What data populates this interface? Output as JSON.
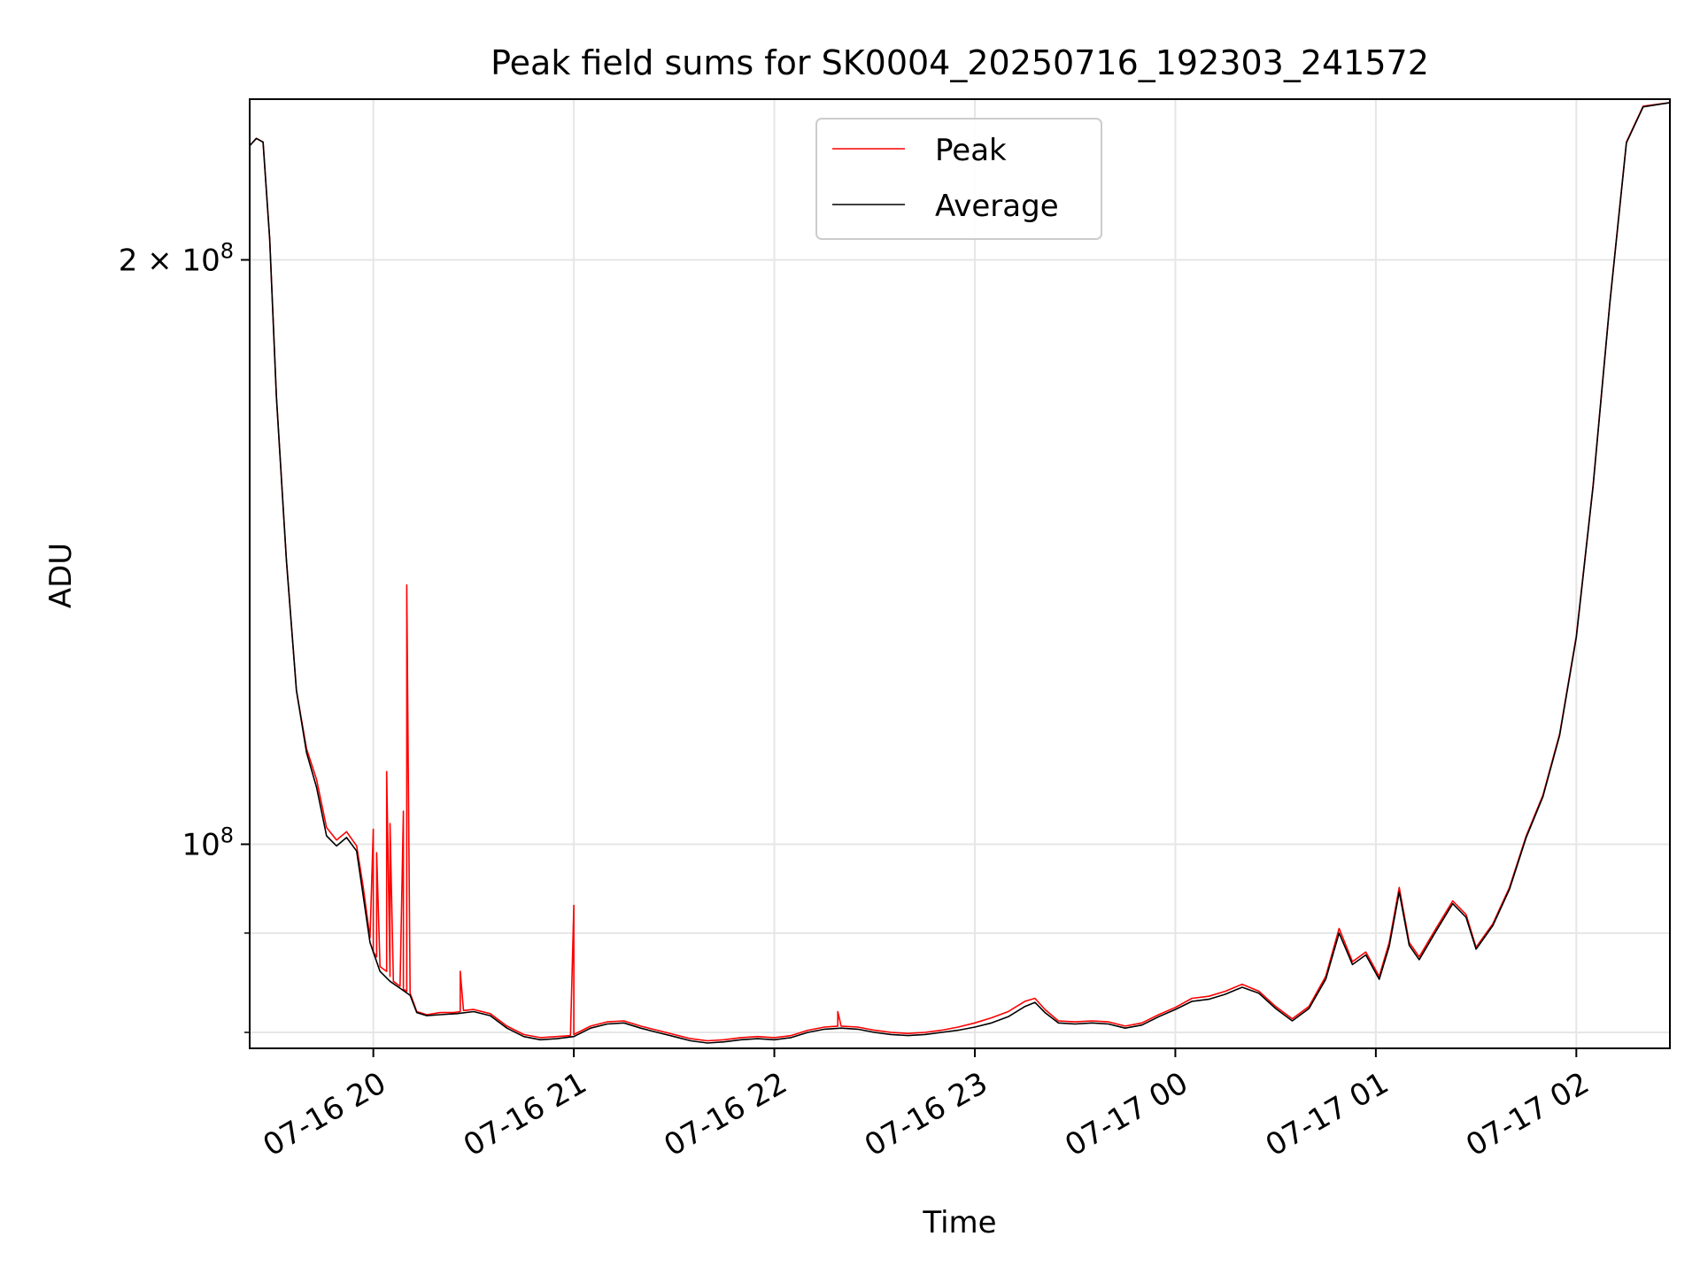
{
  "chart_data": {
    "type": "line",
    "title": "Peak field sums for SK0004_20250716_192303_241572",
    "xlabel": "Time",
    "ylabel": "ADU",
    "x_axis": "time",
    "y_scale": "log",
    "xlim": [
      "2025-07-16 19:23",
      "2025-07-17 02:28"
    ],
    "ylim": [
      78500000,
      242000000
    ],
    "xticks": [
      {
        "t": "2025-07-16 20:00",
        "label": "07-16 20"
      },
      {
        "t": "2025-07-16 21:00",
        "label": "07-16 21"
      },
      {
        "t": "2025-07-16 22:00",
        "label": "07-16 22"
      },
      {
        "t": "2025-07-16 23:00",
        "label": "07-16 23"
      },
      {
        "t": "2025-07-17 00:00",
        "label": "07-17 00"
      },
      {
        "t": "2025-07-17 01:00",
        "label": "07-17 01"
      },
      {
        "t": "2025-07-17 02:00",
        "label": "07-17 02"
      }
    ],
    "yticks_major": [
      {
        "value": 200000000,
        "base": "2 × 10",
        "exp": "8"
      },
      {
        "value": 100000000,
        "base": "10",
        "exp": "8"
      }
    ],
    "yticks_minor": [
      90000000,
      80000000
    ],
    "grid": true,
    "legend_position": "upper-center",
    "series": [
      {
        "name": "Peak",
        "color": "#ff0000",
        "points": [
          [
            "2025-07-16 19:23",
            229000000
          ],
          [
            "2025-07-16 19:25",
            231000000
          ],
          [
            "2025-07-16 19:27",
            230000000
          ],
          [
            "2025-07-16 19:29",
            205000000
          ],
          [
            "2025-07-16 19:31",
            170000000
          ],
          [
            "2025-07-16 19:34",
            140000000
          ],
          [
            "2025-07-16 19:37",
            120000000
          ],
          [
            "2025-07-16 19:40",
            112000000
          ],
          [
            "2025-07-16 19:43",
            108000000
          ],
          [
            "2025-07-16 19:46",
            102000000
          ],
          [
            "2025-07-16 19:49",
            100500000
          ],
          [
            "2025-07-16 19:52",
            101500000
          ],
          [
            "2025-07-16 19:55",
            99800000
          ],
          [
            "2025-07-16 19:57",
            95000000
          ],
          [
            "2025-07-16 19:59",
            89500000
          ],
          [
            "2025-07-16 20:00",
            101800000
          ],
          [
            "2025-07-16 20:00",
            88000000
          ],
          [
            "2025-07-16 20:01",
            87500000
          ],
          [
            "2025-07-16 20:01",
            99000000
          ],
          [
            "2025-07-16 20:02",
            86500000
          ],
          [
            "2025-07-16 20:04",
            86000000
          ],
          [
            "2025-07-16 20:04",
            109000000
          ],
          [
            "2025-07-16 20:05",
            85500000
          ],
          [
            "2025-07-16 20:05",
            102500000
          ],
          [
            "2025-07-16 20:06",
            85000000
          ],
          [
            "2025-07-16 20:08",
            84500000
          ],
          [
            "2025-07-16 20:09",
            104000000
          ],
          [
            "2025-07-16 20:09",
            84200000
          ],
          [
            "2025-07-16 20:10",
            84000000
          ],
          [
            "2025-07-16 20:10",
            136000000
          ],
          [
            "2025-07-16 20:11",
            83800000
          ],
          [
            "2025-07-16 20:13",
            82000000
          ],
          [
            "2025-07-16 20:16",
            81700000
          ],
          [
            "2025-07-16 20:20",
            81900000
          ],
          [
            "2025-07-16 20:24",
            81900000
          ],
          [
            "2025-07-16 20:26",
            82000000
          ],
          [
            "2025-07-16 20:26",
            86000000
          ],
          [
            "2025-07-16 20:27",
            82100000
          ],
          [
            "2025-07-16 20:30",
            82200000
          ],
          [
            "2025-07-16 20:35",
            81800000
          ],
          [
            "2025-07-16 20:40",
            80600000
          ],
          [
            "2025-07-16 20:45",
            79800000
          ],
          [
            "2025-07-16 20:50",
            79500000
          ],
          [
            "2025-07-16 20:55",
            79600000
          ],
          [
            "2025-07-16 20:59",
            79700000
          ],
          [
            "2025-07-16 21:00",
            93000000
          ],
          [
            "2025-07-16 21:00",
            79800000
          ],
          [
            "2025-07-16 21:05",
            80600000
          ],
          [
            "2025-07-16 21:10",
            81000000
          ],
          [
            "2025-07-16 21:15",
            81100000
          ],
          [
            "2025-07-16 21:20",
            80600000
          ],
          [
            "2025-07-16 21:25",
            80200000
          ],
          [
            "2025-07-16 21:30",
            79800000
          ],
          [
            "2025-07-16 21:35",
            79400000
          ],
          [
            "2025-07-16 21:40",
            79200000
          ],
          [
            "2025-07-16 21:45",
            79300000
          ],
          [
            "2025-07-16 21:50",
            79500000
          ],
          [
            "2025-07-16 21:55",
            79600000
          ],
          [
            "2025-07-16 22:00",
            79500000
          ],
          [
            "2025-07-16 22:05",
            79700000
          ],
          [
            "2025-07-16 22:10",
            80200000
          ],
          [
            "2025-07-16 22:15",
            80500000
          ],
          [
            "2025-07-16 22:19",
            80600000
          ],
          [
            "2025-07-16 22:19",
            82000000
          ],
          [
            "2025-07-16 22:20",
            80600000
          ],
          [
            "2025-07-16 22:25",
            80500000
          ],
          [
            "2025-07-16 22:30",
            80200000
          ],
          [
            "2025-07-16 22:35",
            80000000
          ],
          [
            "2025-07-16 22:40",
            79900000
          ],
          [
            "2025-07-16 22:45",
            80000000
          ],
          [
            "2025-07-16 22:50",
            80200000
          ],
          [
            "2025-07-16 22:55",
            80500000
          ],
          [
            "2025-07-16 23:00",
            80900000
          ],
          [
            "2025-07-16 23:05",
            81400000
          ],
          [
            "2025-07-16 23:10",
            82000000
          ],
          [
            "2025-07-16 23:15",
            83000000
          ],
          [
            "2025-07-16 23:18",
            83300000
          ],
          [
            "2025-07-16 23:21",
            82200000
          ],
          [
            "2025-07-16 23:25",
            81100000
          ],
          [
            "2025-07-16 23:30",
            81000000
          ],
          [
            "2025-07-16 23:35",
            81100000
          ],
          [
            "2025-07-16 23:40",
            81000000
          ],
          [
            "2025-07-16 23:45",
            80600000
          ],
          [
            "2025-07-16 23:50",
            80900000
          ],
          [
            "2025-07-16 23:55",
            81700000
          ],
          [
            "2025-07-17 00:00",
            82400000
          ],
          [
            "2025-07-17 00:05",
            83300000
          ],
          [
            "2025-07-17 00:10",
            83500000
          ],
          [
            "2025-07-17 00:15",
            84000000
          ],
          [
            "2025-07-17 00:20",
            84700000
          ],
          [
            "2025-07-17 00:25",
            84000000
          ],
          [
            "2025-07-17 00:30",
            82500000
          ],
          [
            "2025-07-17 00:35",
            81300000
          ],
          [
            "2025-07-17 00:40",
            82500000
          ],
          [
            "2025-07-17 00:45",
            85500000
          ],
          [
            "2025-07-17 00:49",
            90500000
          ],
          [
            "2025-07-17 00:53",
            87000000
          ],
          [
            "2025-07-17 00:57",
            88000000
          ],
          [
            "2025-07-17 01:01",
            85500000
          ],
          [
            "2025-07-17 01:04",
            89000000
          ],
          [
            "2025-07-17 01:07",
            95000000
          ],
          [
            "2025-07-17 01:10",
            89000000
          ],
          [
            "2025-07-17 01:13",
            87500000
          ],
          [
            "2025-07-17 01:18",
            90500000
          ],
          [
            "2025-07-17 01:23",
            93500000
          ],
          [
            "2025-07-17 01:27",
            92000000
          ],
          [
            "2025-07-17 01:30",
            88500000
          ],
          [
            "2025-07-17 01:35",
            91000000
          ],
          [
            "2025-07-17 01:40",
            95000000
          ],
          [
            "2025-07-17 01:45",
            101000000
          ],
          [
            "2025-07-17 01:50",
            106000000
          ],
          [
            "2025-07-17 01:55",
            114000000
          ],
          [
            "2025-07-17 02:00",
            128000000
          ],
          [
            "2025-07-17 02:05",
            153000000
          ],
          [
            "2025-07-17 02:10",
            190000000
          ],
          [
            "2025-07-17 02:15",
            230000000
          ],
          [
            "2025-07-17 02:20",
            240000000
          ],
          [
            "2025-07-17 02:28",
            241000000
          ]
        ]
      },
      {
        "name": "Average",
        "color": "#000000",
        "points": [
          [
            "2025-07-16 19:23",
            229000000
          ],
          [
            "2025-07-16 19:25",
            231000000
          ],
          [
            "2025-07-16 19:27",
            230000000
          ],
          [
            "2025-07-16 19:29",
            205000000
          ],
          [
            "2025-07-16 19:31",
            170000000
          ],
          [
            "2025-07-16 19:34",
            140000000
          ],
          [
            "2025-07-16 19:37",
            120000000
          ],
          [
            "2025-07-16 19:40",
            111500000
          ],
          [
            "2025-07-16 19:43",
            107000000
          ],
          [
            "2025-07-16 19:46",
            101000000
          ],
          [
            "2025-07-16 19:49",
            99800000
          ],
          [
            "2025-07-16 19:52",
            100800000
          ],
          [
            "2025-07-16 19:55",
            99200000
          ],
          [
            "2025-07-16 19:57",
            94000000
          ],
          [
            "2025-07-16 19:59",
            89000000
          ],
          [
            "2025-07-16 20:02",
            86000000
          ],
          [
            "2025-07-16 20:05",
            85000000
          ],
          [
            "2025-07-16 20:08",
            84300000
          ],
          [
            "2025-07-16 20:11",
            83600000
          ],
          [
            "2025-07-16 20:13",
            81900000
          ],
          [
            "2025-07-16 20:16",
            81600000
          ],
          [
            "2025-07-16 20:20",
            81700000
          ],
          [
            "2025-07-16 20:25",
            81800000
          ],
          [
            "2025-07-16 20:30",
            82000000
          ],
          [
            "2025-07-16 20:35",
            81600000
          ],
          [
            "2025-07-16 20:40",
            80400000
          ],
          [
            "2025-07-16 20:45",
            79600000
          ],
          [
            "2025-07-16 20:50",
            79300000
          ],
          [
            "2025-07-16 20:55",
            79400000
          ],
          [
            "2025-07-16 21:00",
            79600000
          ],
          [
            "2025-07-16 21:05",
            80400000
          ],
          [
            "2025-07-16 21:10",
            80800000
          ],
          [
            "2025-07-16 21:15",
            80900000
          ],
          [
            "2025-07-16 21:20",
            80400000
          ],
          [
            "2025-07-16 21:25",
            80000000
          ],
          [
            "2025-07-16 21:30",
            79600000
          ],
          [
            "2025-07-16 21:35",
            79200000
          ],
          [
            "2025-07-16 21:40",
            79000000
          ],
          [
            "2025-07-16 21:45",
            79100000
          ],
          [
            "2025-07-16 21:50",
            79300000
          ],
          [
            "2025-07-16 21:55",
            79400000
          ],
          [
            "2025-07-16 22:00",
            79300000
          ],
          [
            "2025-07-16 22:05",
            79500000
          ],
          [
            "2025-07-16 22:10",
            80000000
          ],
          [
            "2025-07-16 22:15",
            80300000
          ],
          [
            "2025-07-16 22:20",
            80400000
          ],
          [
            "2025-07-16 22:25",
            80300000
          ],
          [
            "2025-07-16 22:30",
            80000000
          ],
          [
            "2025-07-16 22:35",
            79800000
          ],
          [
            "2025-07-16 22:40",
            79700000
          ],
          [
            "2025-07-16 22:45",
            79800000
          ],
          [
            "2025-07-16 22:50",
            80000000
          ],
          [
            "2025-07-16 22:55",
            80200000
          ],
          [
            "2025-07-16 23:00",
            80500000
          ],
          [
            "2025-07-16 23:05",
            80900000
          ],
          [
            "2025-07-16 23:10",
            81500000
          ],
          [
            "2025-07-16 23:15",
            82500000
          ],
          [
            "2025-07-16 23:18",
            82900000
          ],
          [
            "2025-07-16 23:21",
            81900000
          ],
          [
            "2025-07-16 23:25",
            80900000
          ],
          [
            "2025-07-16 23:30",
            80800000
          ],
          [
            "2025-07-16 23:35",
            80900000
          ],
          [
            "2025-07-16 23:40",
            80800000
          ],
          [
            "2025-07-16 23:45",
            80400000
          ],
          [
            "2025-07-16 23:50",
            80700000
          ],
          [
            "2025-07-16 23:55",
            81500000
          ],
          [
            "2025-07-17 00:00",
            82200000
          ],
          [
            "2025-07-17 00:05",
            83000000
          ],
          [
            "2025-07-17 00:10",
            83200000
          ],
          [
            "2025-07-17 00:15",
            83700000
          ],
          [
            "2025-07-17 00:20",
            84400000
          ],
          [
            "2025-07-17 00:25",
            83800000
          ],
          [
            "2025-07-17 00:30",
            82300000
          ],
          [
            "2025-07-17 00:35",
            81100000
          ],
          [
            "2025-07-17 00:40",
            82300000
          ],
          [
            "2025-07-17 00:45",
            85200000
          ],
          [
            "2025-07-17 00:49",
            90000000
          ],
          [
            "2025-07-17 00:53",
            86700000
          ],
          [
            "2025-07-17 00:57",
            87700000
          ],
          [
            "2025-07-17 01:01",
            85200000
          ],
          [
            "2025-07-17 01:04",
            88600000
          ],
          [
            "2025-07-17 01:07",
            94500000
          ],
          [
            "2025-07-17 01:10",
            88700000
          ],
          [
            "2025-07-17 01:13",
            87200000
          ],
          [
            "2025-07-17 01:18",
            90200000
          ],
          [
            "2025-07-17 01:23",
            93200000
          ],
          [
            "2025-07-17 01:27",
            91700000
          ],
          [
            "2025-07-17 01:30",
            88300000
          ],
          [
            "2025-07-17 01:35",
            90800000
          ],
          [
            "2025-07-17 01:40",
            94800000
          ],
          [
            "2025-07-17 01:45",
            100800000
          ],
          [
            "2025-07-17 01:50",
            105800000
          ],
          [
            "2025-07-17 01:55",
            113800000
          ],
          [
            "2025-07-17 02:00",
            127800000
          ],
          [
            "2025-07-17 02:05",
            152800000
          ],
          [
            "2025-07-17 02:10",
            189800000
          ],
          [
            "2025-07-17 02:15",
            229800000
          ],
          [
            "2025-07-17 02:20",
            239800000
          ],
          [
            "2025-07-17 02:28",
            241000000
          ]
        ]
      }
    ]
  }
}
